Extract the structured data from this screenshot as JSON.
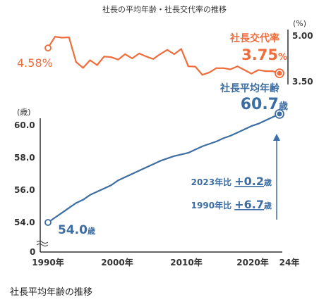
{
  "chart_data": {
    "type": "line",
    "title": "社長の平均年齢・社長交代率の推移",
    "x_ticks": [
      "1990年",
      "2000年",
      "2010年",
      "2020年",
      "24年"
    ],
    "top_panel": {
      "series_name": "社長交代率",
      "unit_label": "(%)",
      "y_ticks": [
        "5.00",
        "3.50"
      ],
      "ylim": [
        3.5,
        5.0
      ],
      "color": "#ef6c3b",
      "start_label": "4.58%",
      "end_label_value": "3.75",
      "end_label_unit": "%",
      "x": [
        1990,
        1991,
        1992,
        1993,
        1994,
        1995,
        1996,
        1997,
        1998,
        1999,
        2000,
        2001,
        2002,
        2003,
        2004,
        2005,
        2006,
        2007,
        2008,
        2009,
        2010,
        2011,
        2012,
        2013,
        2014,
        2015,
        2016,
        2017,
        2018,
        2019,
        2020,
        2021,
        2022,
        2023
      ],
      "values": [
        4.58,
        4.95,
        4.92,
        4.93,
        4.12,
        3.93,
        4.18,
        4.02,
        4.3,
        4.28,
        4.2,
        4.38,
        4.24,
        4.4,
        4.3,
        4.22,
        4.38,
        4.52,
        4.38,
        4.55,
        3.98,
        3.97,
        3.7,
        3.78,
        3.92,
        3.92,
        3.88,
        3.98,
        3.86,
        3.74,
        3.86,
        3.82,
        3.82,
        3.75
      ]
    },
    "bottom_panel": {
      "series_name": "社長平均年齢",
      "unit_label": "(歳)",
      "y_ticks": [
        "60.0",
        "58.0",
        "56.0",
        "54.0",
        "0"
      ],
      "ylim": [
        54.0,
        60.0
      ],
      "color": "#3d6ea3",
      "start_label_value": "54.0",
      "start_label_unit": "歳",
      "end_label_value": "60.7",
      "end_label_unit": "歳",
      "x": [
        1990,
        1991,
        1992,
        1993,
        1994,
        1995,
        1996,
        1997,
        1998,
        1999,
        2000,
        2001,
        2002,
        2003,
        2004,
        2005,
        2006,
        2007,
        2008,
        2009,
        2010,
        2011,
        2012,
        2013,
        2014,
        2015,
        2016,
        2017,
        2018,
        2019,
        2020,
        2021,
        2022,
        2023
      ],
      "values": [
        54.0,
        54.3,
        54.6,
        54.9,
        55.2,
        55.4,
        55.7,
        55.9,
        56.1,
        56.3,
        56.6,
        56.8,
        57.0,
        57.2,
        57.4,
        57.6,
        57.8,
        57.95,
        58.1,
        58.2,
        58.3,
        58.5,
        58.7,
        58.85,
        59.0,
        59.2,
        59.35,
        59.55,
        59.75,
        59.95,
        60.1,
        60.3,
        60.5,
        60.7
      ]
    },
    "annotations": [
      {
        "prefix": "2023年比 ",
        "value": "+0.2",
        "unit": "歳"
      },
      {
        "prefix": "1990年比 ",
        "value": "+6.7",
        "unit": "歳"
      }
    ]
  },
  "caption": "社長平均年齢の推移"
}
